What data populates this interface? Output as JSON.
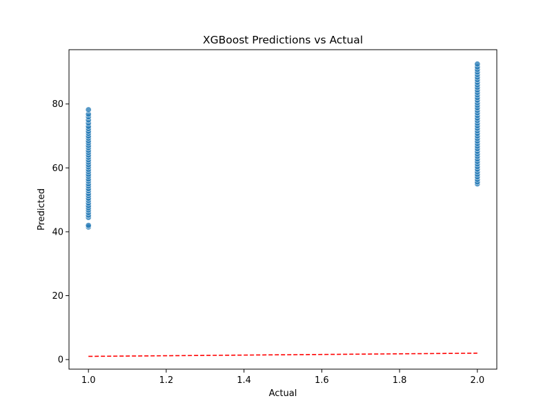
{
  "chart_data": {
    "type": "scatter",
    "title": "XGBoost Predictions vs Actual",
    "xlabel": "Actual",
    "ylabel": "Predicted",
    "xlim": [
      0.95,
      2.05
    ],
    "ylim": [
      -3.0,
      97.0
    ],
    "xticks": [
      1.0,
      1.2,
      1.4,
      1.6,
      1.8,
      2.0
    ],
    "xtick_labels": [
      "1.0",
      "1.2",
      "1.4",
      "1.6",
      "1.8",
      "2.0"
    ],
    "yticks": [
      0,
      20,
      40,
      60,
      80
    ],
    "ytick_labels": [
      "0",
      "20",
      "40",
      "60",
      "80"
    ],
    "grid": false,
    "series": [
      {
        "kind": "scatter",
        "color": "#1f77b4",
        "points": [
          [
            1.0,
            41.5
          ],
          [
            1.0,
            42.0
          ],
          [
            1.0,
            44.5
          ],
          [
            1.0,
            45.2
          ],
          [
            1.0,
            46.0
          ],
          [
            1.0,
            46.8
          ],
          [
            1.0,
            47.5
          ],
          [
            1.0,
            48.2
          ],
          [
            1.0,
            49.0
          ],
          [
            1.0,
            49.8
          ],
          [
            1.0,
            50.5
          ],
          [
            1.0,
            51.3
          ],
          [
            1.0,
            52.0
          ],
          [
            1.0,
            52.8
          ],
          [
            1.0,
            53.5
          ],
          [
            1.0,
            54.3
          ],
          [
            1.0,
            55.0
          ],
          [
            1.0,
            55.8
          ],
          [
            1.0,
            56.5
          ],
          [
            1.0,
            57.3
          ],
          [
            1.0,
            58.0
          ],
          [
            1.0,
            58.8
          ],
          [
            1.0,
            59.5
          ],
          [
            1.0,
            60.3
          ],
          [
            1.0,
            61.0
          ],
          [
            1.0,
            61.8
          ],
          [
            1.0,
            62.5
          ],
          [
            1.0,
            63.3
          ],
          [
            1.0,
            64.0
          ],
          [
            1.0,
            64.8
          ],
          [
            1.0,
            65.5
          ],
          [
            1.0,
            66.3
          ],
          [
            1.0,
            67.0
          ],
          [
            1.0,
            67.8
          ],
          [
            1.0,
            68.5
          ],
          [
            1.0,
            69.3
          ],
          [
            1.0,
            70.0
          ],
          [
            1.0,
            70.8
          ],
          [
            1.0,
            71.5
          ],
          [
            1.0,
            72.3
          ],
          [
            1.0,
            73.0
          ],
          [
            1.0,
            74.0
          ],
          [
            1.0,
            75.0
          ],
          [
            1.0,
            76.0
          ],
          [
            1.0,
            76.8
          ],
          [
            1.0,
            78.2
          ],
          [
            2.0,
            55.0
          ],
          [
            2.0,
            55.6
          ],
          [
            2.0,
            56.4
          ],
          [
            2.0,
            57.2
          ],
          [
            2.0,
            58.0
          ],
          [
            2.0,
            58.8
          ],
          [
            2.0,
            59.6
          ],
          [
            2.0,
            60.4
          ],
          [
            2.0,
            61.2
          ],
          [
            2.0,
            62.0
          ],
          [
            2.0,
            62.8
          ],
          [
            2.0,
            63.6
          ],
          [
            2.0,
            64.4
          ],
          [
            2.0,
            65.2
          ],
          [
            2.0,
            66.0
          ],
          [
            2.0,
            66.8
          ],
          [
            2.0,
            67.6
          ],
          [
            2.0,
            68.4
          ],
          [
            2.0,
            69.2
          ],
          [
            2.0,
            70.0
          ],
          [
            2.0,
            70.8
          ],
          [
            2.0,
            71.6
          ],
          [
            2.0,
            72.4
          ],
          [
            2.0,
            73.2
          ],
          [
            2.0,
            74.0
          ],
          [
            2.0,
            74.8
          ],
          [
            2.0,
            75.6
          ],
          [
            2.0,
            76.4
          ],
          [
            2.0,
            77.2
          ],
          [
            2.0,
            78.0
          ],
          [
            2.0,
            78.8
          ],
          [
            2.0,
            79.6
          ],
          [
            2.0,
            80.4
          ],
          [
            2.0,
            81.2
          ],
          [
            2.0,
            82.0
          ],
          [
            2.0,
            82.8
          ],
          [
            2.0,
            83.6
          ],
          [
            2.0,
            84.4
          ],
          [
            2.0,
            85.2
          ],
          [
            2.0,
            86.0
          ],
          [
            2.0,
            86.8
          ],
          [
            2.0,
            87.6
          ],
          [
            2.0,
            88.4
          ],
          [
            2.0,
            89.2
          ],
          [
            2.0,
            90.0
          ],
          [
            2.0,
            90.8
          ],
          [
            2.0,
            91.6
          ],
          [
            2.0,
            92.5
          ]
        ]
      },
      {
        "kind": "line",
        "style": "dashed",
        "color": "#ff0000",
        "points": [
          [
            1.0,
            1.0
          ],
          [
            2.0,
            2.0
          ]
        ]
      }
    ]
  }
}
